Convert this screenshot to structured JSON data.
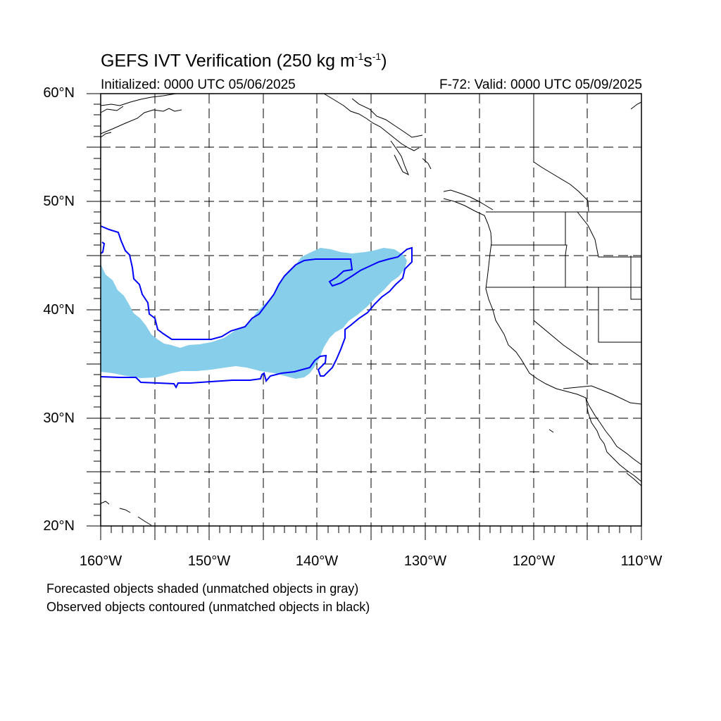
{
  "title": {
    "main": "GEFS IVT Verification (250 kg m",
    "exp1": "-1",
    "mid": "s",
    "exp2": "-1",
    "end": ")"
  },
  "subtitle_left": "Initialized: 0000 UTC 05/06/2025",
  "subtitle_right": "F-72: Valid: 0000 UTC 05/09/2025",
  "lat_labels": [
    "60°N",
    "50°N",
    "40°N",
    "30°N",
    "20°N"
  ],
  "lon_labels": [
    "160°W",
    "150°W",
    "140°W",
    "130°W",
    "120°W",
    "110°W"
  ],
  "notes": [
    "Forecasted objects shaded (unmatched objects in gray)",
    "Observed objects contoured (unmatched objects in black)"
  ],
  "colors": {
    "forecast_fill": "#87ceeb",
    "observed_contour": "#0000ff",
    "coastline": "#000000",
    "grid": "#000000"
  },
  "map": {
    "lon_range": [
      -160,
      -110
    ],
    "lat_range": [
      20,
      60
    ],
    "grid_lines": "dashed, every 5°",
    "projection": "cylindrical equidistant"
  }
}
